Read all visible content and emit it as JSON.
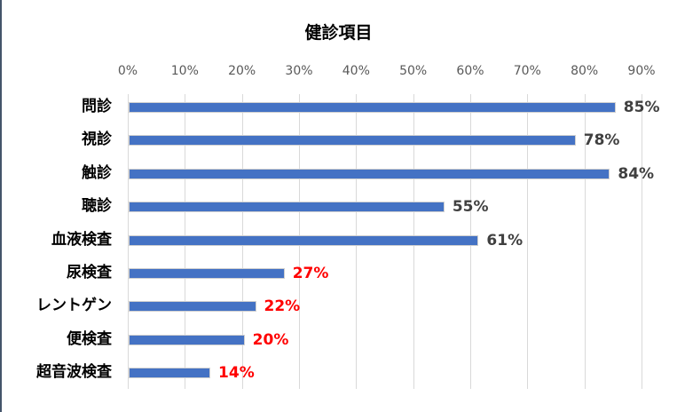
{
  "chart_data": {
    "type": "bar",
    "orientation": "horizontal",
    "title": "健診項目",
    "xlabel": "",
    "ylabel": "",
    "xlim": [
      0,
      0.9
    ],
    "x_ticks": [
      "0%",
      "10%",
      "20%",
      "30%",
      "40%",
      "50%",
      "60%",
      "70%",
      "80%",
      "90%"
    ],
    "grid": true,
    "axis_position": "top",
    "categories": [
      "問診",
      "視診",
      "触診",
      "聴診",
      "血液検査",
      "尿検査",
      "レントゲン",
      "便検査",
      "超音波検査"
    ],
    "values": [
      85,
      78,
      84,
      55,
      61,
      27,
      22,
      20,
      14
    ],
    "labels": [
      "85%",
      "78%",
      "84%",
      "55%",
      "61%",
      "27%",
      "22%",
      "20%",
      "14%"
    ],
    "label_colors": [
      "#404040",
      "#404040",
      "#404040",
      "#404040",
      "#404040",
      "#ff0000",
      "#ff0000",
      "#ff0000",
      "#ff0000"
    ],
    "bar_color": "#4472c4"
  }
}
